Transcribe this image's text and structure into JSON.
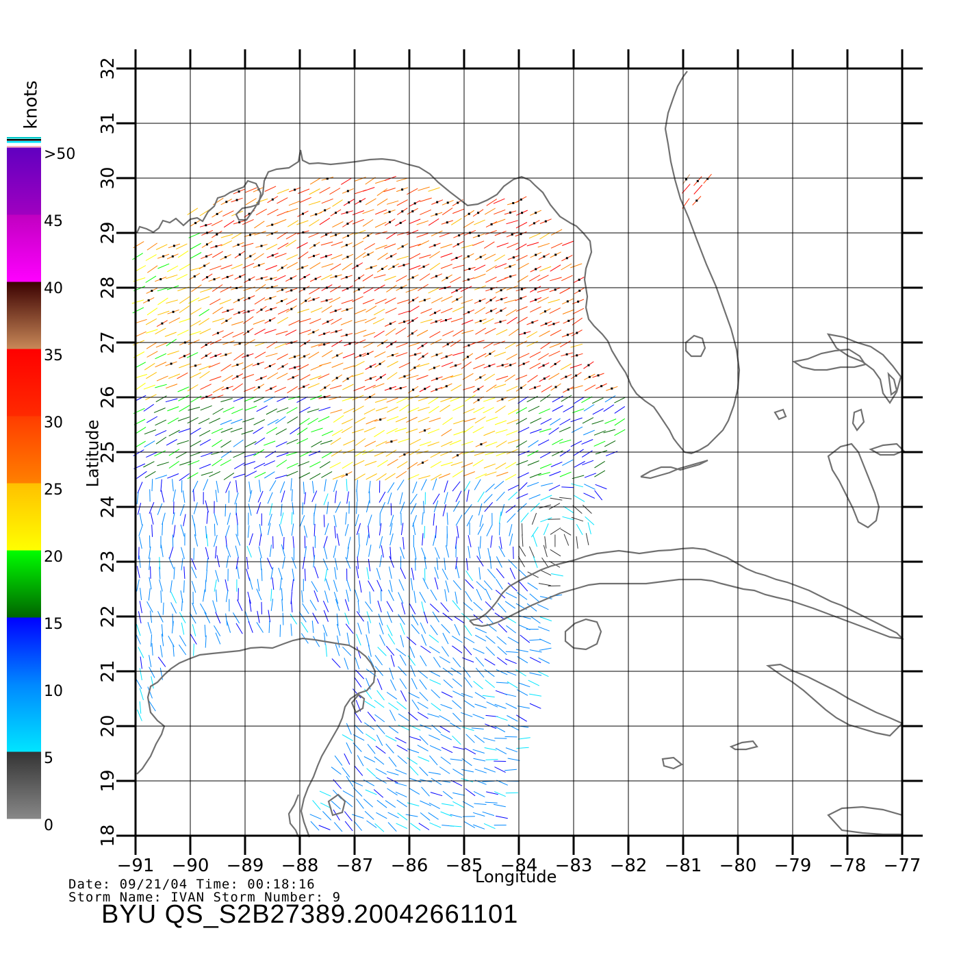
{
  "legend": {
    "unit": "knots",
    "labels": [
      ">50",
      "45",
      "40",
      "35",
      "30",
      "25",
      "20",
      "15",
      "10",
      "5",
      "0"
    ],
    "bands": [
      {
        "from": 0,
        "to": 5,
        "colors": [
          "#888888",
          "#333333"
        ]
      },
      {
        "from": 5,
        "to": 10,
        "colors": [
          "#00e5ff",
          "#0088ff"
        ]
      },
      {
        "from": 10,
        "to": 15,
        "colors": [
          "#0088ff",
          "#0000ff"
        ]
      },
      {
        "from": 15,
        "to": 20,
        "colors": [
          "#006400",
          "#00ff00"
        ]
      },
      {
        "from": 20,
        "to": 25,
        "colors": [
          "#ffff00",
          "#ffc000"
        ]
      },
      {
        "from": 25,
        "to": 30,
        "colors": [
          "#ff8000",
          "#ff3c00"
        ]
      },
      {
        "from": 30,
        "to": 35,
        "colors": [
          "#ff2a00",
          "#ff0000"
        ]
      },
      {
        "from": 35,
        "to": 40,
        "colors": [
          "#c88858",
          "#3a0000"
        ]
      },
      {
        "from": 40,
        "to": 45,
        "colors": [
          "#ff00ff",
          "#c000c0"
        ]
      },
      {
        "from": 45,
        "to": 50,
        "colors": [
          "#a000c0",
          "#6000c0"
        ]
      }
    ]
  },
  "axes": {
    "xlabel": "Longitude",
    "ylabel": "Latitude",
    "lon_ticks": [
      "-91",
      "-90",
      "-89",
      "-88",
      "-87",
      "-86",
      "-85",
      "-84",
      "-83",
      "-82",
      "-81",
      "-80",
      "-79",
      "-78",
      "-77"
    ],
    "lat_ticks": [
      "18",
      "19",
      "20",
      "21",
      "22",
      "23",
      "24",
      "25",
      "26",
      "27",
      "28",
      "29",
      "30",
      "31",
      "32"
    ],
    "xlim": [
      -91,
      -77
    ],
    "ylim": [
      18,
      32
    ]
  },
  "footer": {
    "line1": "Date: 09/21/04   Time: 00:18:16",
    "line2": "Storm Name: IVAN   Storm Number: 9",
    "title": "BYU QS_S2B27389.20042661101"
  },
  "colors": {
    "coast": "#707070",
    "grid": "#000000",
    "flag_dot": "#000000"
  }
}
